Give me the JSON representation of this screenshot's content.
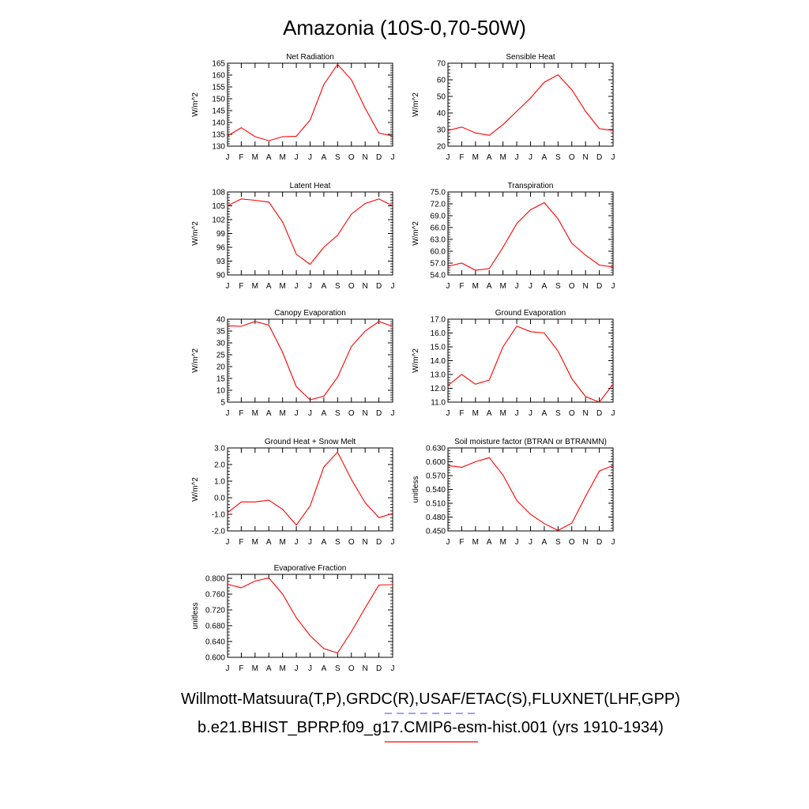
{
  "title": "Amazonia (10S-0,70-50W)",
  "legend": {
    "line1": "Willmott-Matsuura(T,P),GRDC(R),USAF/ETAC(S),FLUXNET(LHF,GPP)",
    "line2": "b.e21.BHIST_BPRP.f09_g17.CMIP6-esm-hist.001 (yrs 1910-1934)",
    "obs_color": "#6666ff",
    "model_color": "#ff0000"
  },
  "month_labels": [
    "J",
    "F",
    "M",
    "A",
    "M",
    "J",
    "J",
    "A",
    "S",
    "O",
    "N",
    "D",
    "J"
  ],
  "line_color": "#ff0000",
  "chart_data": [
    {
      "type": "line",
      "title": "Net Radiation",
      "ylabel": "W/m^2",
      "ylim": [
        130,
        165
      ],
      "yticks": [
        "130",
        "135",
        "140",
        "145",
        "150",
        "155",
        "160",
        "165"
      ],
      "values": [
        134.3,
        137.8,
        134.0,
        132.3,
        134.0,
        134.2,
        141.0,
        156.0,
        164.5,
        158.0,
        146.0,
        135.5,
        134.3
      ]
    },
    {
      "type": "line",
      "title": "Sensible Heat",
      "ylabel": "W/m^2",
      "ylim": [
        20,
        70
      ],
      "yticks": [
        "20",
        "30",
        "40",
        "50",
        "60",
        "70"
      ],
      "values": [
        29.5,
        31.5,
        28.0,
        26.5,
        33.0,
        41.0,
        49.0,
        58.5,
        63.0,
        54.0,
        41.0,
        30.5,
        29.5
      ]
    },
    {
      "type": "line",
      "title": "Latent Heat",
      "ylabel": "W/m^2",
      "ylim": [
        90,
        108
      ],
      "yticks": [
        "90",
        "93",
        "96",
        "99",
        "102",
        "105",
        "108"
      ],
      "values": [
        105.0,
        106.5,
        106.2,
        105.8,
        101.5,
        94.5,
        92.3,
        96.0,
        98.6,
        103.2,
        105.5,
        106.5,
        105.0
      ]
    },
    {
      "type": "line",
      "title": "Transpiration",
      "ylabel": "W/m^2",
      "ylim": [
        54,
        75
      ],
      "yticks": [
        "54.0",
        "57.0",
        "60.0",
        "63.0",
        "66.0",
        "69.0",
        "72.0",
        "75.0"
      ],
      "values": [
        56.2,
        57.0,
        55.2,
        55.6,
        61.0,
        67.0,
        70.5,
        72.3,
        68.2,
        62.0,
        59.0,
        56.5,
        56.0
      ]
    },
    {
      "type": "line",
      "title": "Canopy Evaporation",
      "ylabel": "W/m^2",
      "ylim": [
        5,
        40
      ],
      "yticks": [
        "5",
        "10",
        "15",
        "20",
        "25",
        "30",
        "35",
        "40"
      ],
      "values": [
        37.2,
        37.0,
        39.0,
        37.5,
        26.0,
        11.5,
        6.0,
        7.5,
        15.5,
        28.5,
        35.0,
        39.0,
        37.0
      ]
    },
    {
      "type": "line",
      "title": "Ground Evaporation",
      "ylabel": "W/m^2",
      "ylim": [
        11,
        17
      ],
      "yticks": [
        "11.0",
        "12.0",
        "13.0",
        "14.0",
        "15.0",
        "16.0",
        "17.0"
      ],
      "values": [
        12.2,
        13.0,
        12.3,
        12.6,
        15.0,
        16.5,
        16.1,
        16.0,
        14.7,
        12.7,
        11.4,
        11.0,
        12.3
      ]
    },
    {
      "type": "line",
      "title": "Ground Heat + Snow Melt",
      "ylabel": "W/m^2",
      "ylim": [
        -2,
        3
      ],
      "yticks": [
        "-2.0",
        "-1.0",
        "0.0",
        "1.0",
        "2.0",
        "3.0"
      ],
      "values": [
        -0.9,
        -0.25,
        -0.25,
        -0.15,
        -0.7,
        -1.65,
        -0.5,
        1.85,
        2.75,
        1.1,
        -0.3,
        -1.2,
        -0.95
      ]
    },
    {
      "type": "line",
      "title": "Soil moisture factor (BTRAN or BTRANMN)",
      "ylabel": "unitless",
      "ylim": [
        0.45,
        0.63
      ],
      "yticks": [
        "0.450",
        "0.480",
        "0.510",
        "0.540",
        "0.570",
        "0.600",
        "0.630"
      ],
      "values": [
        0.592,
        0.588,
        0.6,
        0.609,
        0.571,
        0.516,
        0.486,
        0.466,
        0.451,
        0.467,
        0.525,
        0.58,
        0.592
      ]
    },
    {
      "type": "line",
      "title": "Evaporative Fraction",
      "ylabel": "unitless",
      "ylim": [
        0.6,
        0.81
      ],
      "yticks": [
        "0.600",
        "0.640",
        "0.680",
        "0.720",
        "0.760",
        "0.800"
      ],
      "values": [
        0.785,
        0.776,
        0.793,
        0.801,
        0.76,
        0.7,
        0.655,
        0.622,
        0.611,
        0.665,
        0.725,
        0.783,
        0.784
      ]
    }
  ]
}
